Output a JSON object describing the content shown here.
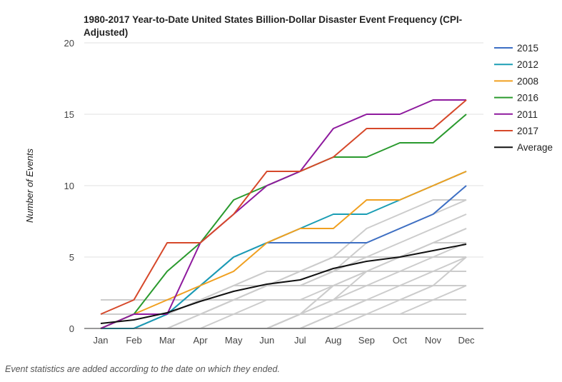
{
  "chart_data": {
    "type": "line",
    "title_lines": [
      "1980-2017 Year-to-Date United States Billion-Dollar Disaster Event Frequency (CPI-",
      "Adjusted)"
    ],
    "xlabel": "",
    "ylabel": "Number of Events",
    "categories": [
      "Jan",
      "Feb",
      "Mar",
      "Apr",
      "May",
      "Jun",
      "Jul",
      "Aug",
      "Sep",
      "Oct",
      "Nov",
      "Dec"
    ],
    "ylim": [
      0,
      20
    ],
    "yticks": [
      0,
      5,
      10,
      15,
      20
    ],
    "grid": true,
    "legend_position": "right",
    "series": [
      {
        "name": "2015",
        "color": "#3d6fc4",
        "values": [
          0,
          0,
          1,
          3,
          5,
          6,
          6,
          6,
          6,
          7,
          8,
          10
        ]
      },
      {
        "name": "2012",
        "color": "#1a9db4",
        "values": [
          0,
          0,
          1,
          3,
          5,
          6,
          7,
          8,
          8,
          9,
          10,
          11
        ]
      },
      {
        "name": "2008",
        "color": "#f0a020",
        "values": [
          0,
          1,
          2,
          3,
          4,
          6,
          7,
          7,
          9,
          9,
          10,
          11
        ]
      },
      {
        "name": "2016",
        "color": "#2a9a2e",
        "values": [
          0,
          1,
          4,
          6,
          9,
          10,
          11,
          12,
          12,
          13,
          13,
          15
        ]
      },
      {
        "name": "2011",
        "color": "#8e1a9e",
        "values": [
          0,
          1,
          1,
          6,
          8,
          10,
          11,
          14,
          15,
          15,
          16,
          16
        ]
      },
      {
        "name": "2017",
        "color": "#d6482a",
        "values": [
          1,
          2,
          6,
          6,
          8,
          11,
          11,
          12,
          14,
          14,
          14,
          16
        ]
      },
      {
        "name": "Average",
        "color": "#111111",
        "values": [
          0.35,
          0.6,
          1.1,
          1.9,
          2.6,
          3.1,
          3.4,
          4.2,
          4.7,
          5.0,
          5.45,
          5.9
        ]
      }
    ],
    "background_series": [
      {
        "color": "#cccccc",
        "values": [
          2,
          2,
          2,
          2,
          2,
          2,
          2,
          2,
          2,
          2,
          2,
          2
        ]
      },
      {
        "color": "#cccccc",
        "values": [
          1,
          1,
          1,
          1,
          1,
          1,
          1,
          1,
          1,
          1,
          1,
          1
        ]
      },
      {
        "color": "#cccccc",
        "values": [
          0,
          1,
          1,
          1,
          1,
          1,
          1,
          1,
          1,
          1,
          1,
          1
        ]
      },
      {
        "color": "#cccccc",
        "values": [
          0,
          1,
          1,
          1,
          2,
          2,
          2,
          2,
          2,
          2,
          3,
          3
        ]
      },
      {
        "color": "#cccccc",
        "values": [
          0,
          0,
          1,
          2,
          3,
          3,
          3,
          3,
          3,
          3,
          3,
          3
        ]
      },
      {
        "color": "#cccccc",
        "values": [
          0,
          0,
          1,
          2,
          3,
          4,
          4,
          4,
          4,
          4,
          4,
          4
        ]
      },
      {
        "color": "#cccccc",
        "values": [
          0,
          0,
          1,
          2,
          2,
          3,
          4,
          5,
          5,
          5,
          5,
          5
        ]
      },
      {
        "color": "#cccccc",
        "values": [
          0,
          0,
          0,
          1,
          2,
          3,
          4,
          5,
          5,
          5,
          6,
          7
        ]
      },
      {
        "color": "#cccccc",
        "values": [
          0,
          0,
          1,
          1,
          2,
          3,
          3,
          4,
          5,
          6,
          7,
          8
        ]
      },
      {
        "color": "#cccccc",
        "values": [
          0,
          0,
          0,
          1,
          2,
          3,
          3,
          4,
          6,
          7,
          8,
          9
        ]
      },
      {
        "color": "#cccccc",
        "values": [
          0,
          0,
          1,
          2,
          3,
          4,
          4,
          5,
          7,
          8,
          9,
          9
        ]
      },
      {
        "color": "#cccccc",
        "values": [
          0,
          0,
          0,
          0,
          1,
          2,
          2,
          3,
          4,
          5,
          6,
          7
        ]
      },
      {
        "color": "#cccccc",
        "values": [
          0,
          0,
          0,
          0,
          0,
          0,
          0,
          1,
          2,
          3,
          4,
          5
        ]
      },
      {
        "color": "#cccccc",
        "values": [
          0,
          0,
          0,
          0,
          0,
          0,
          1,
          2,
          3,
          4,
          5,
          6
        ]
      },
      {
        "color": "#cccccc",
        "values": [
          0,
          0,
          0,
          0,
          0,
          0,
          1,
          3,
          4,
          5,
          6,
          6
        ]
      },
      {
        "color": "#cccccc",
        "values": [
          0,
          0,
          0,
          0,
          0,
          0,
          1,
          3,
          3,
          3,
          3,
          3
        ]
      },
      {
        "color": "#cccccc",
        "values": [
          0,
          0,
          0,
          0,
          0,
          0,
          0,
          1,
          2,
          2,
          2,
          2
        ]
      },
      {
        "color": "#cccccc",
        "values": [
          0,
          0,
          0,
          0,
          0,
          0,
          0,
          0,
          1,
          1,
          2,
          3
        ]
      },
      {
        "color": "#cccccc",
        "values": [
          0,
          0,
          0,
          0,
          0,
          0,
          1,
          2,
          4,
          4,
          4,
          4
        ]
      },
      {
        "color": "#cccccc",
        "values": [
          0,
          0,
          0,
          0,
          0,
          0,
          0,
          1,
          1,
          2,
          3,
          5
        ]
      }
    ]
  },
  "caption": "Event statistics are added according to the date on which they ended.",
  "colors": {
    "gridline": "#e0e0e0",
    "baseline": "#333333",
    "background_series": "#cccccc"
  }
}
